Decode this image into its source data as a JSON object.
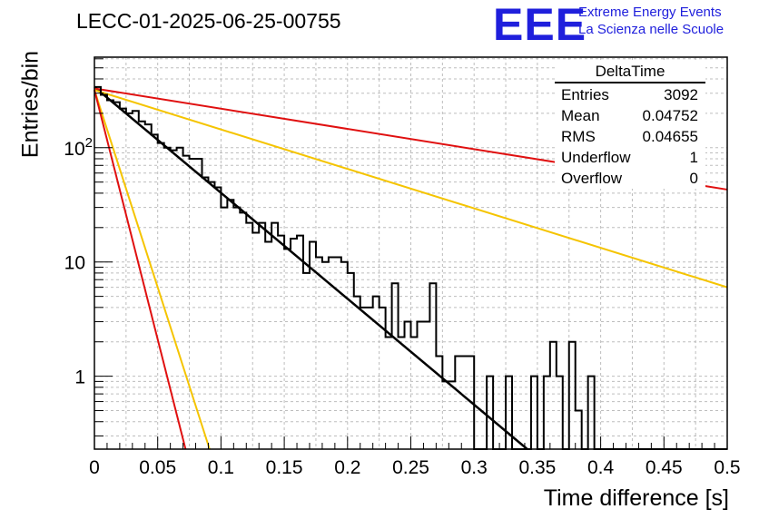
{
  "header": {
    "title": "LECC-01-2025-06-25-00755",
    "logo_text": "EEE",
    "logo_line1": "Extreme Energy Events",
    "logo_line2": "La Scienza nelle Scuole"
  },
  "stats": {
    "title": "DeltaTime",
    "rows": [
      {
        "label": "Entries",
        "value": "3092"
      },
      {
        "label": "Mean",
        "value": "0.04752"
      },
      {
        "label": "RMS",
        "value": "0.04655"
      },
      {
        "label": "Underflow",
        "value": "1"
      },
      {
        "label": "Overflow",
        "value": "0"
      }
    ]
  },
  "chart_data": {
    "type": "line",
    "xlabel": "Time difference [s]",
    "ylabel": "Entries/bin",
    "xlim": [
      0,
      0.5
    ],
    "ylim": [
      0.23,
      620
    ],
    "yscale": "log",
    "grid": true,
    "colors": {
      "histogram": "#000000",
      "fit": "#000000",
      "red": "#e01010",
      "orange": "#f5c400"
    },
    "xticks": [
      {
        "v": 0,
        "label": "0"
      },
      {
        "v": 0.05,
        "label": "0.05"
      },
      {
        "v": 0.1,
        "label": "0.1"
      },
      {
        "v": 0.15,
        "label": "0.15"
      },
      {
        "v": 0.2,
        "label": "0.2"
      },
      {
        "v": 0.25,
        "label": "0.25"
      },
      {
        "v": 0.3,
        "label": "0.3"
      },
      {
        "v": 0.35,
        "label": "0.35"
      },
      {
        "v": 0.4,
        "label": "0.4"
      },
      {
        "v": 0.45,
        "label": "0.45"
      },
      {
        "v": 0.5,
        "label": "0.5"
      }
    ],
    "yticks": [
      {
        "v": 1,
        "base": "1",
        "exp": ""
      },
      {
        "v": 10,
        "base": "10",
        "exp": ""
      },
      {
        "v": 100,
        "base": "10",
        "exp": "2"
      }
    ],
    "histogram": {
      "bin_width": 0.005,
      "x_start": 0,
      "counts": [
        340,
        290,
        260,
        250,
        220,
        200,
        210,
        170,
        160,
        130,
        110,
        100,
        95,
        100,
        85,
        80,
        80,
        55,
        50,
        45,
        30,
        35,
        30,
        27,
        22,
        18,
        22,
        15,
        22,
        17,
        13,
        16,
        17,
        8,
        15,
        11,
        10,
        11,
        11,
        10,
        8,
        5,
        4,
        4,
        5,
        4,
        2.2,
        6.5,
        2.2,
        3,
        2.2,
        3,
        3,
        6.5,
        1.5,
        0.9,
        0.9,
        1.5,
        1.5,
        1.5,
        0,
        0,
        1,
        0,
        0.15,
        1,
        0,
        0.15,
        0.15,
        1,
        0,
        1,
        2,
        1,
        0,
        2,
        0.5,
        0,
        1,
        0,
        0,
        0,
        0,
        0,
        0,
        0,
        0,
        0,
        0,
        0,
        0,
        0,
        0,
        0,
        0,
        0,
        0,
        0,
        0,
        0
      ]
    },
    "series": [
      {
        "color": "#000000",
        "x": [
          0,
          0.342
        ],
        "y": [
          340,
          0.23
        ]
      },
      {
        "color": "#e01010",
        "x": [
          0,
          0.5
        ],
        "y": [
          330,
          43
        ]
      },
      {
        "color": "#f5c400",
        "x": [
          0,
          0.5
        ],
        "y": [
          320,
          6
        ]
      },
      {
        "color": "#f5c400",
        "x": [
          0,
          0.091
        ],
        "y": [
          320,
          0.23
        ]
      },
      {
        "color": "#e01010",
        "x": [
          0,
          0.072
        ],
        "y": [
          320,
          0.23
        ]
      }
    ]
  }
}
